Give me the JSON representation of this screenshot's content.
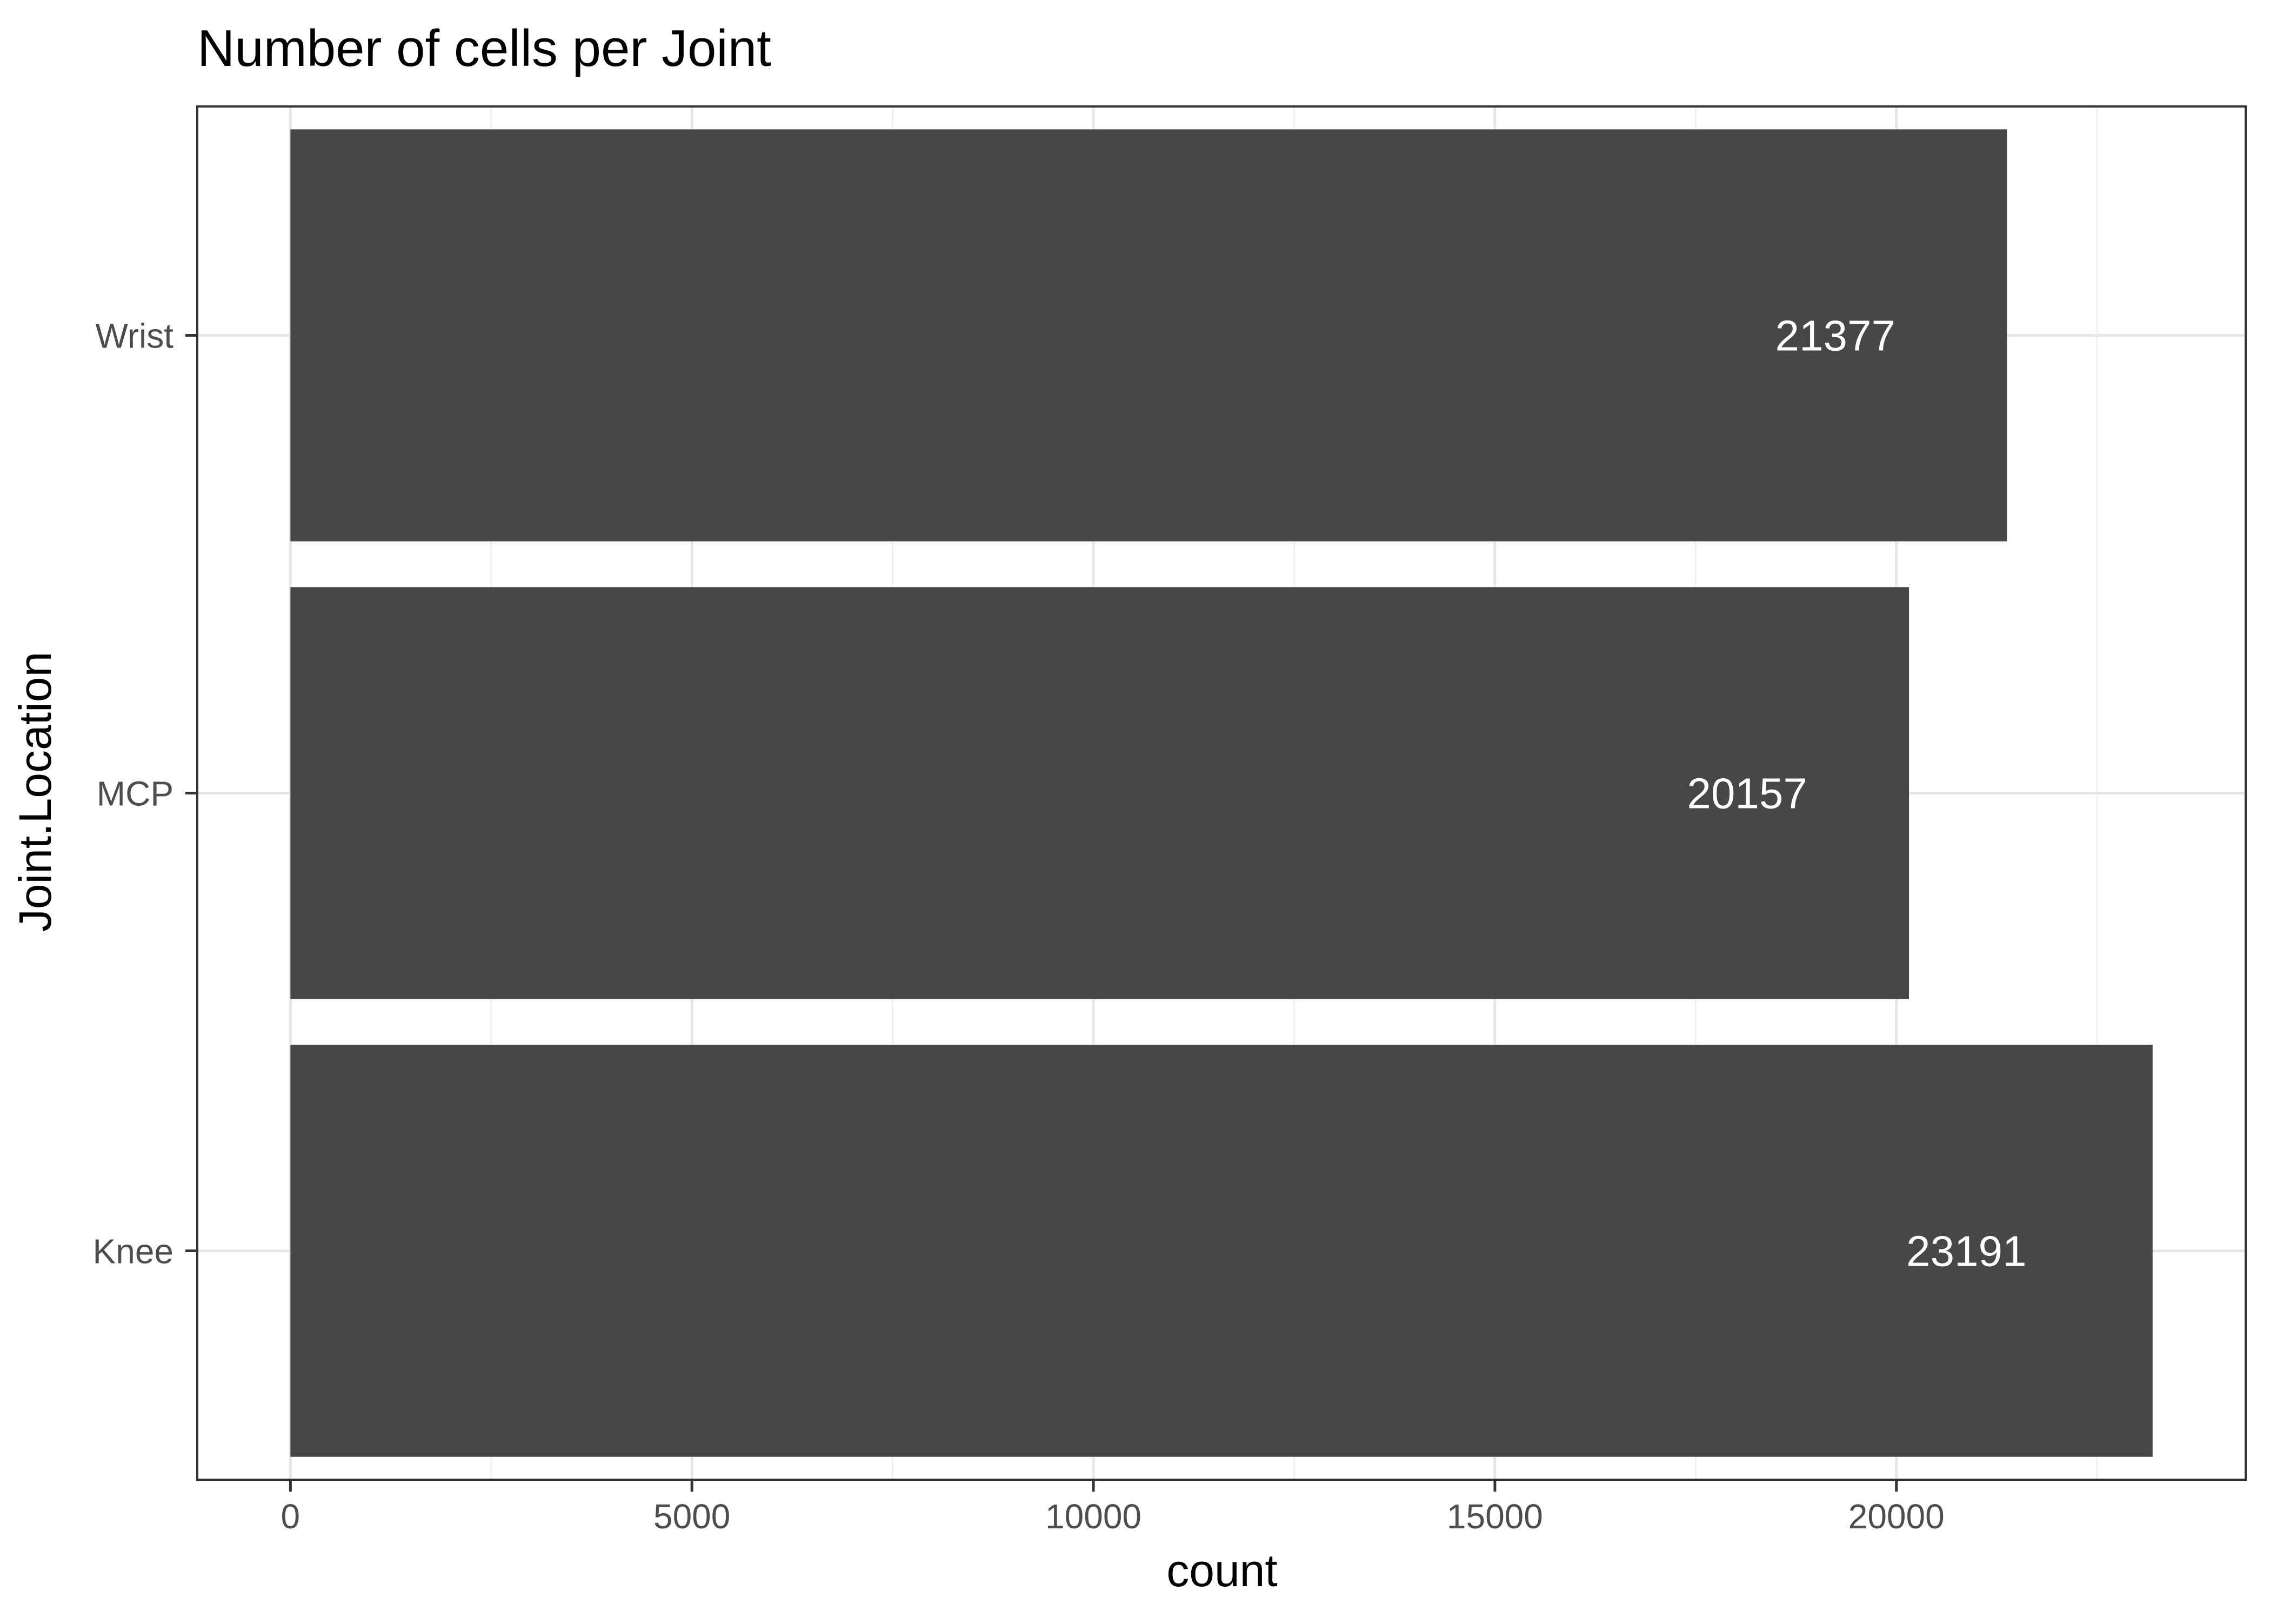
{
  "chart_data": {
    "type": "bar",
    "orientation": "horizontal",
    "title": "Number of cells per Joint",
    "xlabel": "count",
    "ylabel": "Joint.Location",
    "categories": [
      "Knee",
      "MCP",
      "Wrist"
    ],
    "values": [
      23191,
      20157,
      21377
    ],
    "data_labels": [
      "23191",
      "20157",
      "21377"
    ],
    "xlim": [
      -1160,
      24350
    ],
    "x_ticks": [
      0,
      5000,
      10000,
      15000,
      20000
    ],
    "x_tick_labels": [
      "0",
      "5000",
      "10000",
      "15000",
      "20000"
    ],
    "grid": true,
    "legend": "none",
    "colors": {
      "bar": "#474747",
      "grid_major": "#e6e6e6",
      "grid_minor": "#f0f0f0",
      "panel_border": "#333333",
      "tick_text": "#4d4d4d",
      "label_text": "#ffffff"
    }
  }
}
